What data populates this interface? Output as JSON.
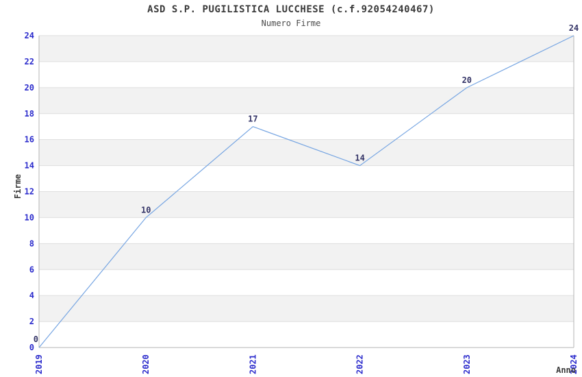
{
  "chart_data": {
    "type": "line",
    "title": "ASD S.P. PUGILISTICA LUCCHESE (c.f.92054240467)",
    "subtitle": "Numero Firme",
    "xlabel": "Anno",
    "ylabel": "Firme",
    "x": [
      "2019",
      "2020",
      "2021",
      "2022",
      "2023",
      "2024"
    ],
    "values": [
      0,
      10,
      17,
      14,
      20,
      24
    ],
    "y_ticks": [
      0,
      2,
      4,
      6,
      8,
      10,
      12,
      14,
      16,
      18,
      20,
      22,
      24
    ],
    "ylim": [
      0,
      24
    ],
    "grid": true,
    "band_fill": "alternating-horizontal",
    "legend": "none",
    "colors": {
      "line": "#76a5e2",
      "tick_label": "#2b2bcc",
      "value_label": "#333366",
      "band": "#f2f2f2",
      "gridline": "#dedede",
      "axis": "#b4b4b4",
      "title_text": "#3a3a3a",
      "background": "#ffffff"
    }
  }
}
